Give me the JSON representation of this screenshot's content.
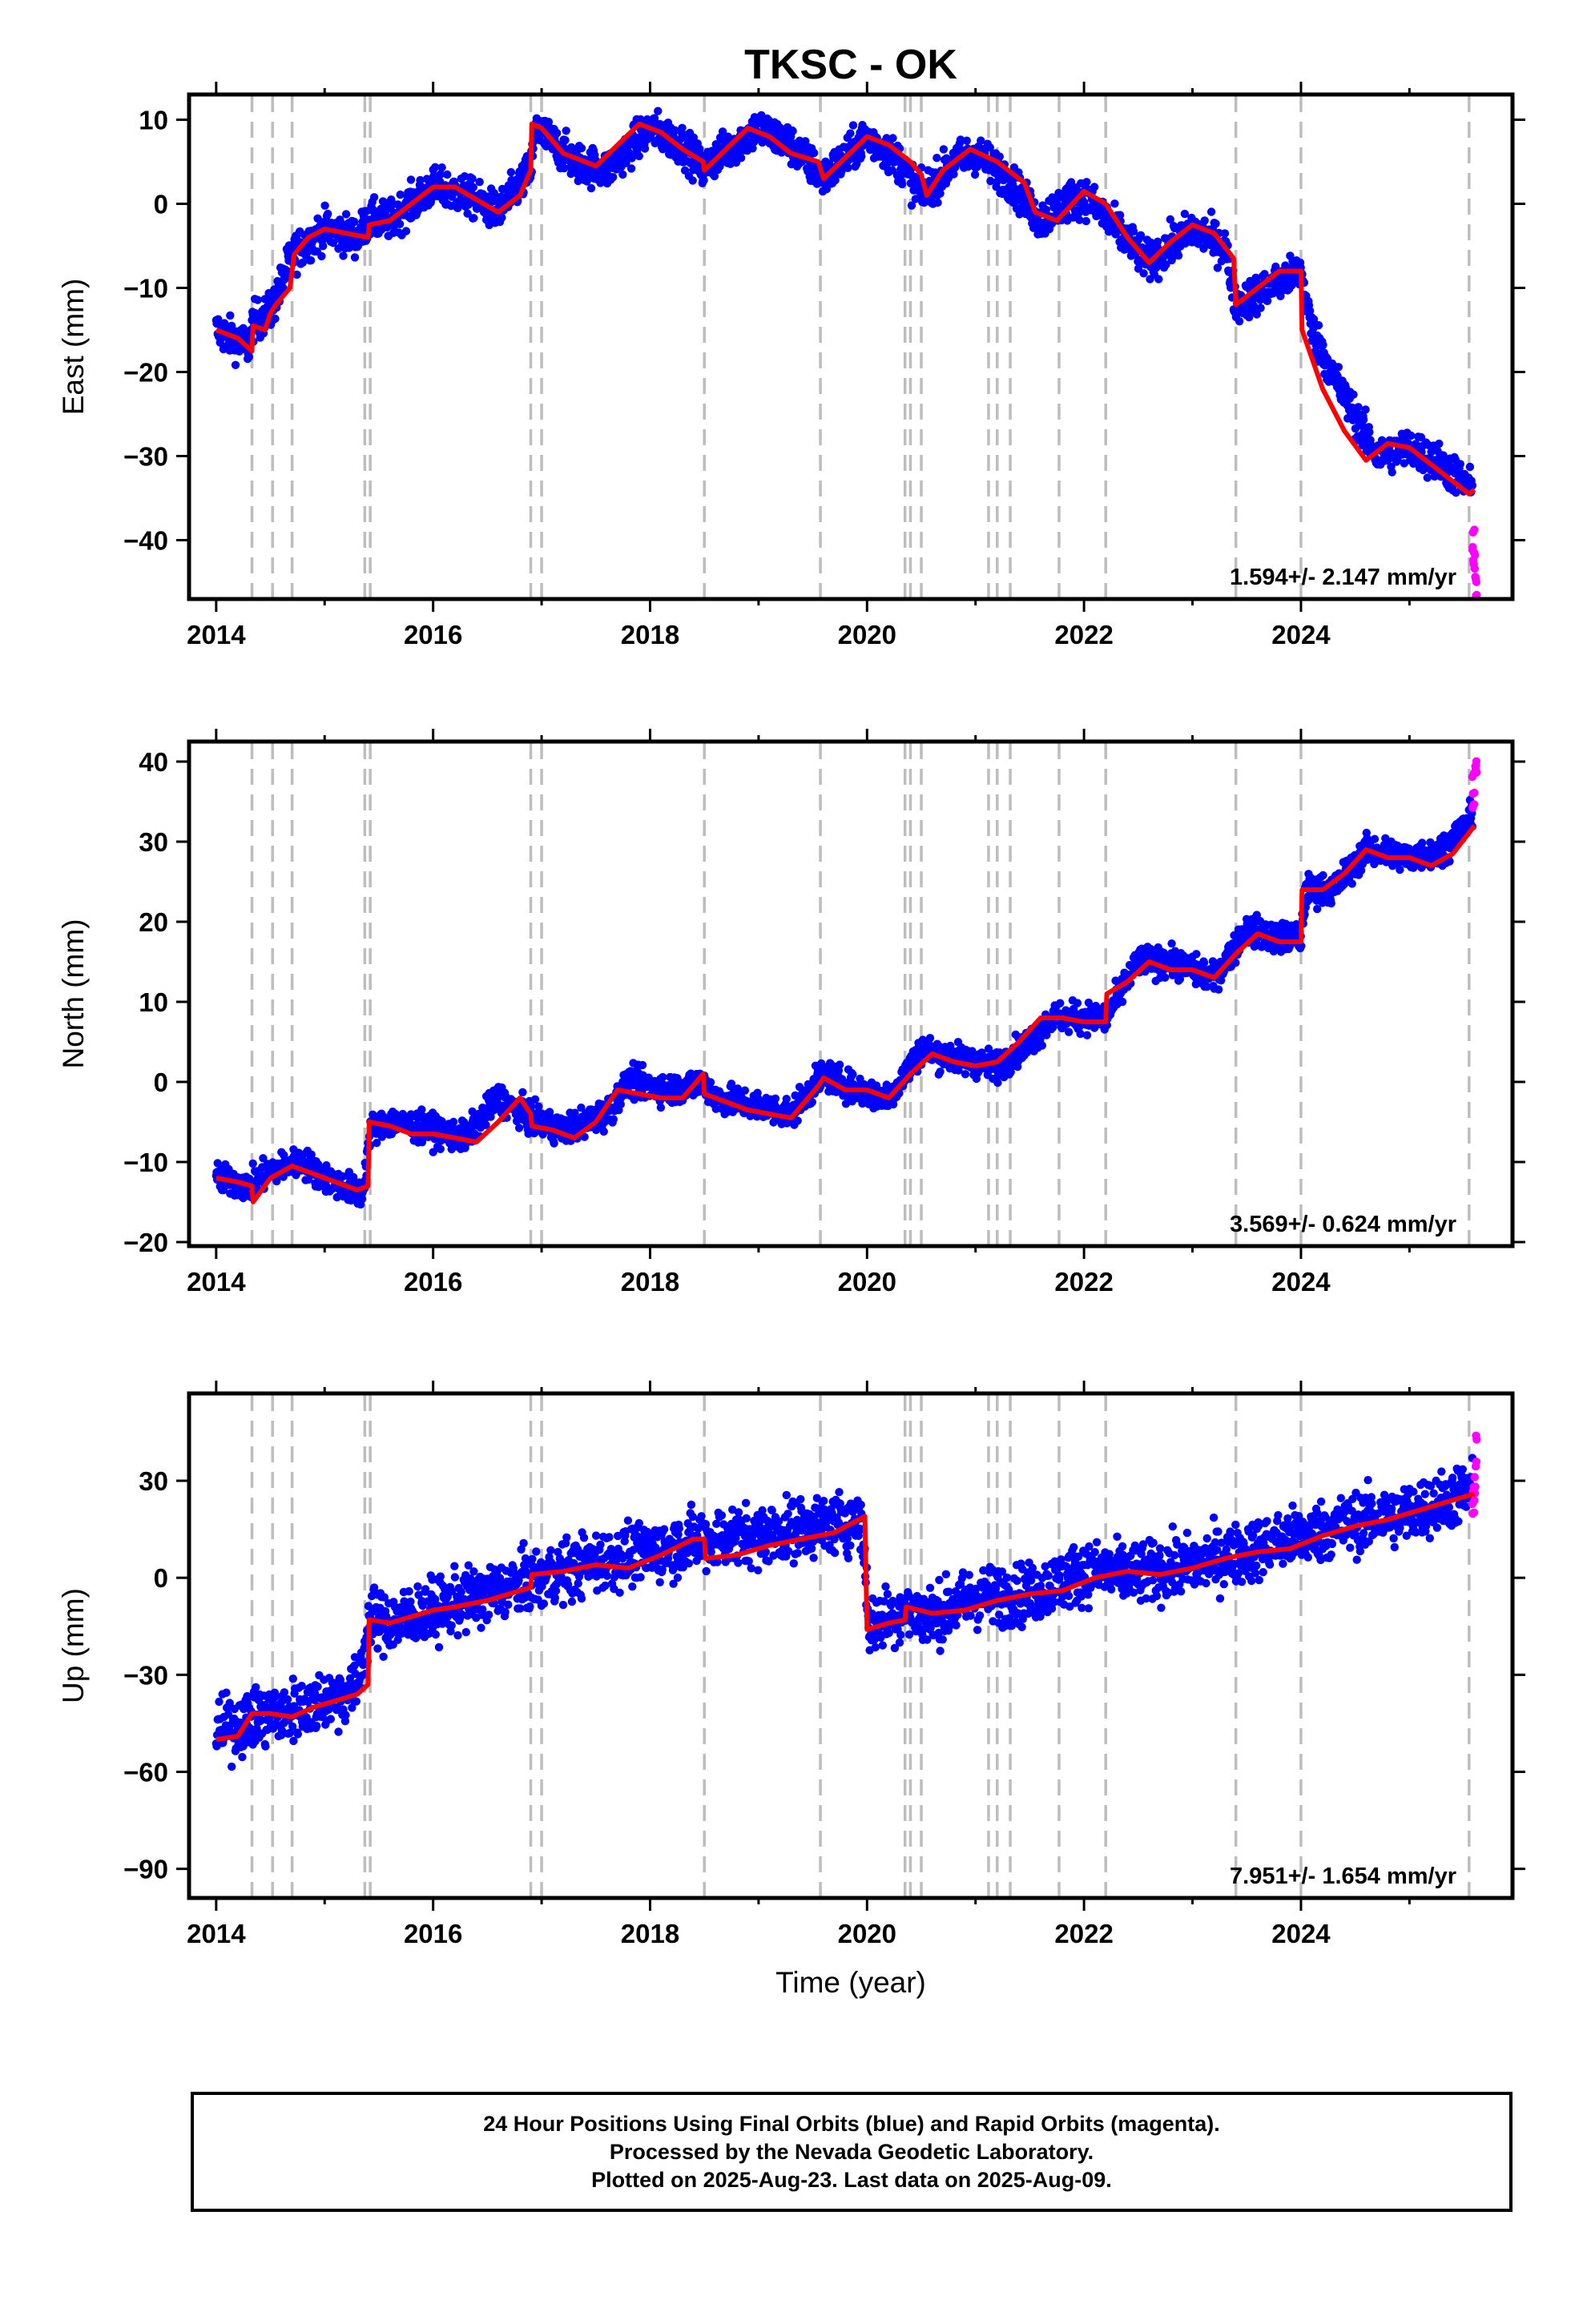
{
  "chart_data": [
    {
      "type": "scatter",
      "panel": "east",
      "title": "TKSC - OK",
      "ylabel": "East (mm)",
      "xlabel": "",
      "xlim": [
        2013.75,
        2025.95
      ],
      "ylim": [
        -47,
        13
      ],
      "xticks": [
        2014,
        2016,
        2018,
        2020,
        2022,
        2024
      ],
      "xtick_labels": [
        "2014",
        "2016",
        "2018",
        "2020",
        "2022",
        "2024"
      ],
      "yticks": [
        -40,
        -30,
        -20,
        -10,
        0,
        10
      ],
      "ytick_labels": [
        "−40",
        "−30",
        "−20",
        "−10",
        "0",
        "10"
      ],
      "rate_label": "1.594+/- 2.147 mm/yr",
      "series": [
        {
          "color": "#0000ff",
          "spread": 1.6,
          "x": [
            2014.0,
            2014.3,
            2014.34,
            2014.5,
            2014.7,
            2015.0,
            2015.3,
            2015.4,
            2015.6,
            2016.0,
            2016.3,
            2016.6,
            2016.9,
            2016.95,
            2017.3,
            2017.6,
            2018.0,
            2018.3,
            2018.5,
            2018.55,
            2019.0,
            2019.3,
            2019.6,
            2020.0,
            2020.3,
            2020.5,
            2020.8,
            2021.0,
            2021.3,
            2021.6,
            2021.8,
            2022.0,
            2022.3,
            2022.6,
            2023.0,
            2023.3,
            2023.4,
            2023.7,
            2024.0,
            2024.1,
            2024.4,
            2024.7,
            2025.0,
            2025.3,
            2025.58
          ],
          "y": [
            -15,
            -17,
            -14,
            -13,
            -6,
            -3,
            -4,
            -2,
            -2,
            2,
            1,
            -1,
            4,
            9,
            5,
            4,
            9,
            7,
            4,
            5,
            9,
            7,
            3,
            8,
            5,
            1,
            5,
            6,
            3,
            -2,
            0,
            1,
            -3,
            -7,
            -3,
            -5,
            -12,
            -10,
            -8,
            -15,
            -23,
            -30,
            -29,
            -31,
            -34
          ]
        },
        {
          "color": "#ff00ff",
          "spread": 2.5,
          "x": [
            2025.58,
            2025.59,
            2025.6,
            2025.61,
            2025.62
          ],
          "y": [
            -38,
            -40,
            -42,
            -44,
            -45
          ]
        }
      ],
      "model": {
        "color": "#ff0000",
        "x": [
          2014.0,
          2014.2,
          2014.33,
          2014.34,
          2014.45,
          2014.5,
          2014.55,
          2014.68,
          2014.72,
          2014.85,
          2015.0,
          2015.2,
          2015.4,
          2015.41,
          2015.6,
          2015.8,
          2016.0,
          2016.2,
          2016.4,
          2016.6,
          2016.8,
          2016.9,
          2016.91,
          2017.0,
          2017.2,
          2017.5,
          2017.7,
          2017.9,
          2018.1,
          2018.3,
          2018.49,
          2018.5,
          2018.7,
          2018.9,
          2019.1,
          2019.3,
          2019.55,
          2019.6,
          2019.8,
          2020.0,
          2020.2,
          2020.4,
          2020.5,
          2020.55,
          2020.7,
          2020.95,
          2021.2,
          2021.45,
          2021.55,
          2021.75,
          2022.0,
          2022.2,
          2022.4,
          2022.6,
          2022.8,
          2023.0,
          2023.2,
          2023.38,
          2023.4,
          2023.6,
          2023.8,
          2024.0,
          2024.01,
          2024.2,
          2024.4,
          2024.6,
          2024.8,
          2025.0,
          2025.2,
          2025.4,
          2025.55,
          2025.6
        ],
        "y": [
          -15,
          -16,
          -17.5,
          -14.5,
          -15,
          -13,
          -12,
          -10,
          -6,
          -4,
          -3,
          -3.5,
          -4,
          -2.5,
          -2,
          0,
          2,
          2,
          0.5,
          -1,
          1,
          4,
          9.5,
          9,
          6,
          4.5,
          7,
          9.5,
          8.5,
          6.5,
          5,
          4,
          6.5,
          9,
          8,
          6,
          5,
          3,
          5.5,
          8,
          7,
          5,
          3.5,
          1,
          4,
          6.5,
          5,
          2.5,
          -1,
          -2,
          1.5,
          0,
          -4,
          -7,
          -4.5,
          -2.5,
          -3.5,
          -6.5,
          -12,
          -10,
          -8,
          -8,
          -15,
          -22,
          -27,
          -30.5,
          -28.5,
          -29,
          -31,
          -33,
          -34.5,
          -34
        ]
      },
      "event_lines_x": [
        2014.33,
        2014.52,
        2014.7,
        2015.37,
        2015.42,
        2016.9,
        2017.0,
        2018.5,
        2019.57,
        2020.35,
        2020.4,
        2020.5,
        2021.12,
        2021.2,
        2021.32,
        2021.77,
        2022.2,
        2023.4,
        2024.0,
        2025.55
      ],
      "grid": false
    },
    {
      "type": "scatter",
      "panel": "north",
      "title": "",
      "ylabel": "North (mm)",
      "xlabel": "",
      "xlim": [
        2013.75,
        2025.95
      ],
      "ylim": [
        -20.5,
        42.5
      ],
      "xticks": [
        2014,
        2016,
        2018,
        2020,
        2022,
        2024
      ],
      "xtick_labels": [
        "2014",
        "2016",
        "2018",
        "2020",
        "2022",
        "2024"
      ],
      "yticks": [
        -20,
        -10,
        0,
        10,
        20,
        30,
        40
      ],
      "ytick_labels": [
        "−20",
        "−10",
        "0",
        "10",
        "20",
        "30",
        "40"
      ],
      "rate_label": "3.569+/- 0.624 mm/yr",
      "series": [
        {
          "color": "#0000ff",
          "spread": 1.3,
          "x": [
            2014.0,
            2014.3,
            2014.5,
            2014.8,
            2015.0,
            2015.35,
            2015.42,
            2015.6,
            2016.0,
            2016.3,
            2016.6,
            2016.95,
            2017.2,
            2017.6,
            2017.8,
            2018.2,
            2018.5,
            2018.6,
            2019.0,
            2019.3,
            2019.6,
            2019.9,
            2020.2,
            2020.5,
            2020.8,
            2021.2,
            2021.5,
            2021.7,
            2022.0,
            2022.2,
            2022.5,
            2022.8,
            2023.2,
            2023.5,
            2023.8,
            2024.0,
            2024.05,
            2024.3,
            2024.6,
            2025.0,
            2025.3,
            2025.58
          ],
          "y": [
            -12,
            -13,
            -11,
            -10,
            -12,
            -14,
            -6,
            -5,
            -6,
            -7,
            -2,
            -5,
            -6,
            -4,
            0,
            -1,
            0,
            -2,
            -3,
            -4,
            1,
            -1,
            -2,
            4,
            3,
            2,
            5,
            8,
            8,
            8,
            15,
            15,
            13,
            19,
            18,
            18,
            24,
            24,
            29,
            28,
            29,
            33
          ]
        },
        {
          "color": "#ff00ff",
          "spread": 1.8,
          "x": [
            2025.58,
            2025.59,
            2025.6,
            2025.61,
            2025.62
          ],
          "y": [
            35,
            37,
            38,
            39,
            40
          ]
        }
      ],
      "model": {
        "color": "#ff0000",
        "x": [
          2014.0,
          2014.2,
          2014.33,
          2014.34,
          2014.5,
          2014.7,
          2014.9,
          2015.1,
          2015.3,
          2015.4,
          2015.41,
          2015.6,
          2015.8,
          2016.0,
          2016.2,
          2016.4,
          2016.6,
          2016.8,
          2016.9,
          2016.91,
          2017.1,
          2017.3,
          2017.5,
          2017.7,
          2017.9,
          2018.1,
          2018.3,
          2018.49,
          2018.5,
          2018.7,
          2018.9,
          2019.1,
          2019.3,
          2019.55,
          2019.6,
          2019.8,
          2020.0,
          2020.2,
          2020.4,
          2020.6,
          2020.8,
          2021.0,
          2021.2,
          2021.4,
          2021.6,
          2021.8,
          2022.0,
          2022.2,
          2022.21,
          2022.4,
          2022.6,
          2022.8,
          2023.0,
          2023.2,
          2023.4,
          2023.6,
          2023.8,
          2024.0,
          2024.01,
          2024.2,
          2024.4,
          2024.6,
          2024.8,
          2025.0,
          2025.2,
          2025.4,
          2025.6
        ],
        "y": [
          -12,
          -12.5,
          -13,
          -15,
          -12,
          -10.5,
          -11.5,
          -12.5,
          -13.5,
          -13,
          -5,
          -5.5,
          -6.5,
          -6.5,
          -7,
          -7.5,
          -5,
          -2,
          -4,
          -5.5,
          -6,
          -7,
          -5,
          -1,
          -1.5,
          -2,
          -2,
          1,
          -1.5,
          -2.5,
          -3.5,
          -4,
          -4.5,
          -0.5,
          0.5,
          -1,
          -1,
          -2,
          1,
          3.5,
          2.5,
          2,
          2.5,
          5,
          8,
          8,
          7.5,
          7.5,
          11,
          12.5,
          15,
          14,
          14,
          13,
          16,
          18.5,
          17.5,
          17.5,
          24,
          24,
          26,
          29,
          28,
          28,
          27,
          28.5,
          32
        ]
      },
      "event_lines_x": [
        2014.33,
        2014.52,
        2014.7,
        2015.37,
        2015.42,
        2016.9,
        2017.0,
        2018.5,
        2019.57,
        2020.35,
        2020.4,
        2020.5,
        2021.12,
        2021.2,
        2021.32,
        2021.77,
        2022.2,
        2023.4,
        2024.0,
        2025.55
      ],
      "grid": false
    },
    {
      "type": "scatter",
      "panel": "up",
      "title": "",
      "ylabel": "Up (mm)",
      "xlabel": "Time (year)",
      "xlim": [
        2013.75,
        2025.95
      ],
      "ylim": [
        -99,
        57
      ],
      "xticks": [
        2014,
        2016,
        2018,
        2020,
        2022,
        2024
      ],
      "xtick_labels": [
        "2014",
        "2016",
        "2018",
        "2020",
        "2022",
        "2024"
      ],
      "yticks": [
        -90,
        -60,
        -30,
        0,
        30
      ],
      "ytick_labels": [
        "−90",
        "−60",
        "−30",
        "0",
        "30"
      ],
      "rate_label": "7.951+/- 1.654 mm/yr",
      "series": [
        {
          "color": "#0000ff",
          "spread": 6.5,
          "x": [
            2014.0,
            2014.3,
            2014.6,
            2015.0,
            2015.3,
            2015.42,
            2015.6,
            2016.0,
            2016.5,
            2017.0,
            2017.5,
            2018.0,
            2018.5,
            2019.0,
            2019.5,
            2019.95,
            2020.02,
            2020.3,
            2020.6,
            2021.0,
            2021.5,
            2022.0,
            2022.5,
            2023.0,
            2023.5,
            2024.0,
            2024.5,
            2025.0,
            2025.58
          ],
          "y": [
            -48,
            -44,
            -42,
            -38,
            -34,
            -13,
            -14,
            -10,
            -5,
            0,
            5,
            8,
            12,
            13,
            16,
            18,
            -15,
            -10,
            -12,
            -6,
            -5,
            2,
            1,
            4,
            8,
            13,
            17,
            20,
            27
          ]
        },
        {
          "color": "#ff00ff",
          "spread": 6,
          "x": [
            2025.58,
            2025.59,
            2025.6,
            2025.61,
            2025.62
          ],
          "y": [
            20,
            25,
            30,
            35,
            40
          ]
        }
      ],
      "model": {
        "color": "#ff0000",
        "x": [
          2014.0,
          2014.2,
          2014.33,
          2014.5,
          2014.7,
          2014.9,
          2015.1,
          2015.3,
          2015.4,
          2015.41,
          2015.6,
          2015.8,
          2016.0,
          2016.2,
          2016.5,
          2016.9,
          2016.91,
          2017.2,
          2017.5,
          2017.8,
          2018.1,
          2018.4,
          2018.5,
          2018.51,
          2018.8,
          2019.1,
          2019.4,
          2019.7,
          2019.98,
          2020.0,
          2020.2,
          2020.35,
          2020.36,
          2020.6,
          2020.9,
          2021.2,
          2021.5,
          2021.8,
          2022.1,
          2022.4,
          2022.7,
          2023.0,
          2023.3,
          2023.6,
          2023.9,
          2024.2,
          2024.5,
          2024.8,
          2025.1,
          2025.4,
          2025.6
        ],
        "y": [
          -50,
          -49,
          -42,
          -42,
          -43,
          -40,
          -38,
          -36,
          -33,
          -13,
          -14,
          -12,
          -10,
          -9,
          -7,
          -3,
          1,
          2,
          4,
          3,
          7,
          12,
          12,
          6,
          7,
          10,
          12,
          14,
          19,
          -16,
          -14,
          -13,
          -9,
          -11,
          -10,
          -7,
          -5,
          -4,
          0,
          2,
          1,
          3,
          6,
          8,
          9,
          13,
          16,
          18,
          21,
          24,
          26
        ]
      },
      "event_lines_x": [
        2014.33,
        2014.52,
        2014.7,
        2015.37,
        2015.42,
        2016.9,
        2017.0,
        2018.5,
        2019.57,
        2020.35,
        2020.4,
        2020.5,
        2021.12,
        2021.2,
        2021.32,
        2021.77,
        2022.2,
        2023.4,
        2024.0,
        2025.55
      ],
      "grid": false
    }
  ],
  "caption": {
    "line1": "24 Hour Positions Using Final Orbits (blue) and Rapid Orbits (magenta).",
    "line2": "Processed by the Nevada Geodetic Laboratory.",
    "line3": "Plotted on 2025-Aug-23. Last data on 2025-Aug-09."
  }
}
